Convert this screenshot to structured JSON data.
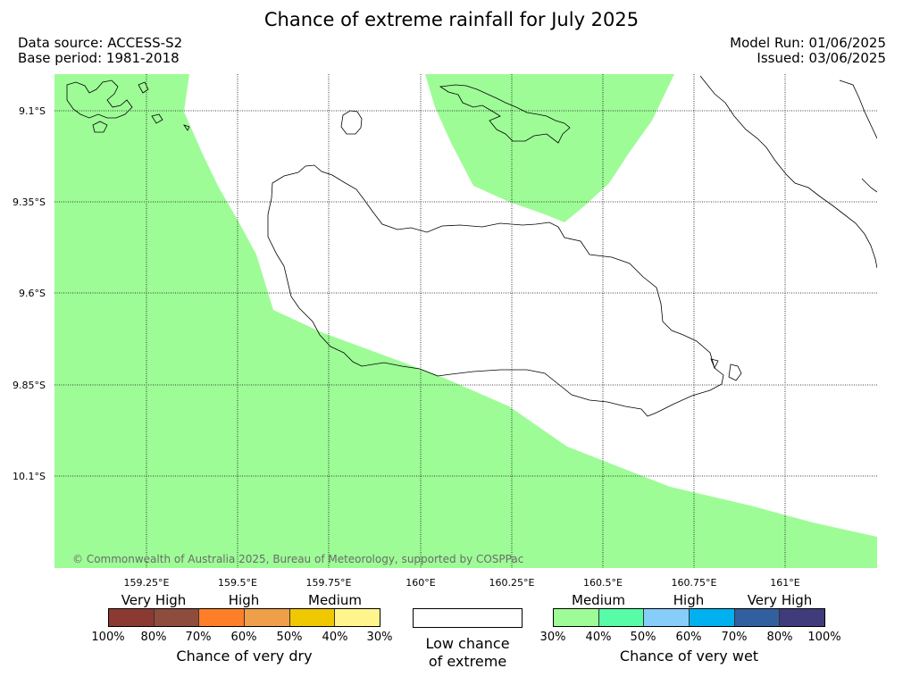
{
  "title": "Chance of extreme rainfall for July 2025",
  "header": {
    "data_source": "Data source: ACCESS-S2",
    "base_period": "Base period: 1981-2018",
    "model_run": "Model Run: 01/06/2025",
    "issued": "Issued: 03/06/2025"
  },
  "map": {
    "lat_labels": [
      "9.1°S",
      "9.35°S",
      "9.6°S",
      "9.85°S",
      "10.1°S"
    ],
    "lon_labels": [
      "159.25°E",
      "159.5°E",
      "159.75°E",
      "160°E",
      "160.25°E",
      "160.5°E",
      "160.75°E",
      "161°E"
    ],
    "shade_color": "#9efc97",
    "copyright": "© Commonwealth of Australia 2025, Bureau of Meteorology, supported by COSPPac"
  },
  "legend": {
    "dry": {
      "categories": [
        "Very High",
        "High",
        "Medium"
      ],
      "colors": [
        "#8b3a32",
        "#8e4c3c",
        "#ff7f28",
        "#ef9f4a",
        "#f0c800",
        "#fff58c"
      ],
      "ticks": [
        "100%",
        "80%",
        "70%",
        "60%",
        "50%",
        "40%",
        "30%"
      ],
      "title": "Chance of very dry"
    },
    "low": {
      "line1": "Low chance",
      "line2": "of extreme"
    },
    "wet": {
      "categories": [
        "Medium",
        "High",
        "Very High"
      ],
      "colors": [
        "#9efc97",
        "#58fca6",
        "#87cdfa",
        "#00b0ef",
        "#325f9e",
        "#403b7a"
      ],
      "ticks": [
        "30%",
        "40%",
        "50%",
        "60%",
        "70%",
        "80%",
        "100%"
      ],
      "title": "Chance of very wet"
    }
  }
}
